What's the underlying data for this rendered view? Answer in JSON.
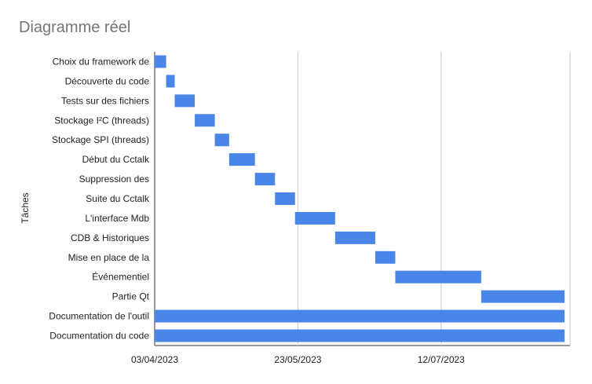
{
  "chart_data": {
    "type": "gantt",
    "title": "Diagramme réel",
    "xlabel": "",
    "ylabel": "Tâches",
    "x_ticks": [
      "03/04/2023",
      "23/05/2023",
      "12/07/2023"
    ],
    "xlim": [
      "2023-04-03",
      "2023-08-26"
    ],
    "grid": "vertical",
    "legend": "none",
    "bar_color": "#4a86e8",
    "tasks": [
      {
        "label": "Choix du framework de",
        "start": "2023-04-03",
        "end": "2023-04-07"
      },
      {
        "label": "Découverte du code",
        "start": "2023-04-07",
        "end": "2023-04-10"
      },
      {
        "label": "Tests sur des fichiers",
        "start": "2023-04-10",
        "end": "2023-04-17"
      },
      {
        "label": "Stockage I²C (threads)",
        "start": "2023-04-17",
        "end": "2023-04-24"
      },
      {
        "label": "Stockage SPI (threads)",
        "start": "2023-04-24",
        "end": "2023-04-29"
      },
      {
        "label": "Début du Cctalk",
        "start": "2023-04-29",
        "end": "2023-05-08"
      },
      {
        "label": "Suppression des",
        "start": "2023-05-08",
        "end": "2023-05-15"
      },
      {
        "label": "Suite du Cctalk",
        "start": "2023-05-15",
        "end": "2023-05-22"
      },
      {
        "label": "L'interface Mdb",
        "start": "2023-05-22",
        "end": "2023-06-05"
      },
      {
        "label": "CDB & Historiques",
        "start": "2023-06-05",
        "end": "2023-06-19"
      },
      {
        "label": "Mise en place de la",
        "start": "2023-06-19",
        "end": "2023-06-26"
      },
      {
        "label": "Événementiel",
        "start": "2023-06-26",
        "end": "2023-07-26"
      },
      {
        "label": "Partie Qt",
        "start": "2023-07-26",
        "end": "2023-08-25"
      },
      {
        "label": "Documentation de l'outil",
        "start": "2023-04-03",
        "end": "2023-08-28"
      },
      {
        "label": "Documentation du code",
        "start": "2023-04-03",
        "end": "2023-08-28"
      }
    ]
  }
}
